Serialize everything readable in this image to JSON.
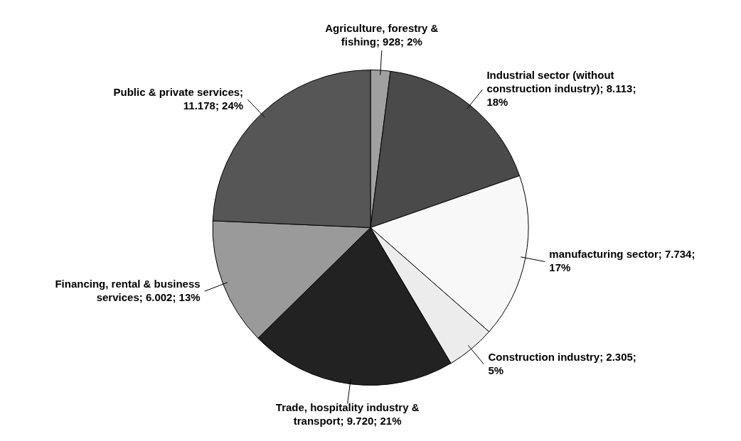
{
  "chart_data": {
    "type": "pie",
    "categories": [
      "Agriculture, forestry & fishing; 928; 2%",
      "Industrial sector (without construction industry); 8.113; 18%",
      "manufacturing sector; 7.734; 17%",
      "Construction industry; 2.305; 5%",
      "Trade, hospitality industry & transport; 9.720; 21%",
      "Financing, rental & business services; 6.002; 13%",
      "Public & private services; 11.178; 24%"
    ],
    "values": [
      928,
      8113,
      7734,
      2305,
      9720,
      6002,
      11178
    ],
    "colors": [
      "#a0a0a0",
      "#4a4a4a",
      "#f8f8f8",
      "#ececec",
      "#222222",
      "#9a9a9a",
      "#565656"
    ],
    "legend": false
  }
}
